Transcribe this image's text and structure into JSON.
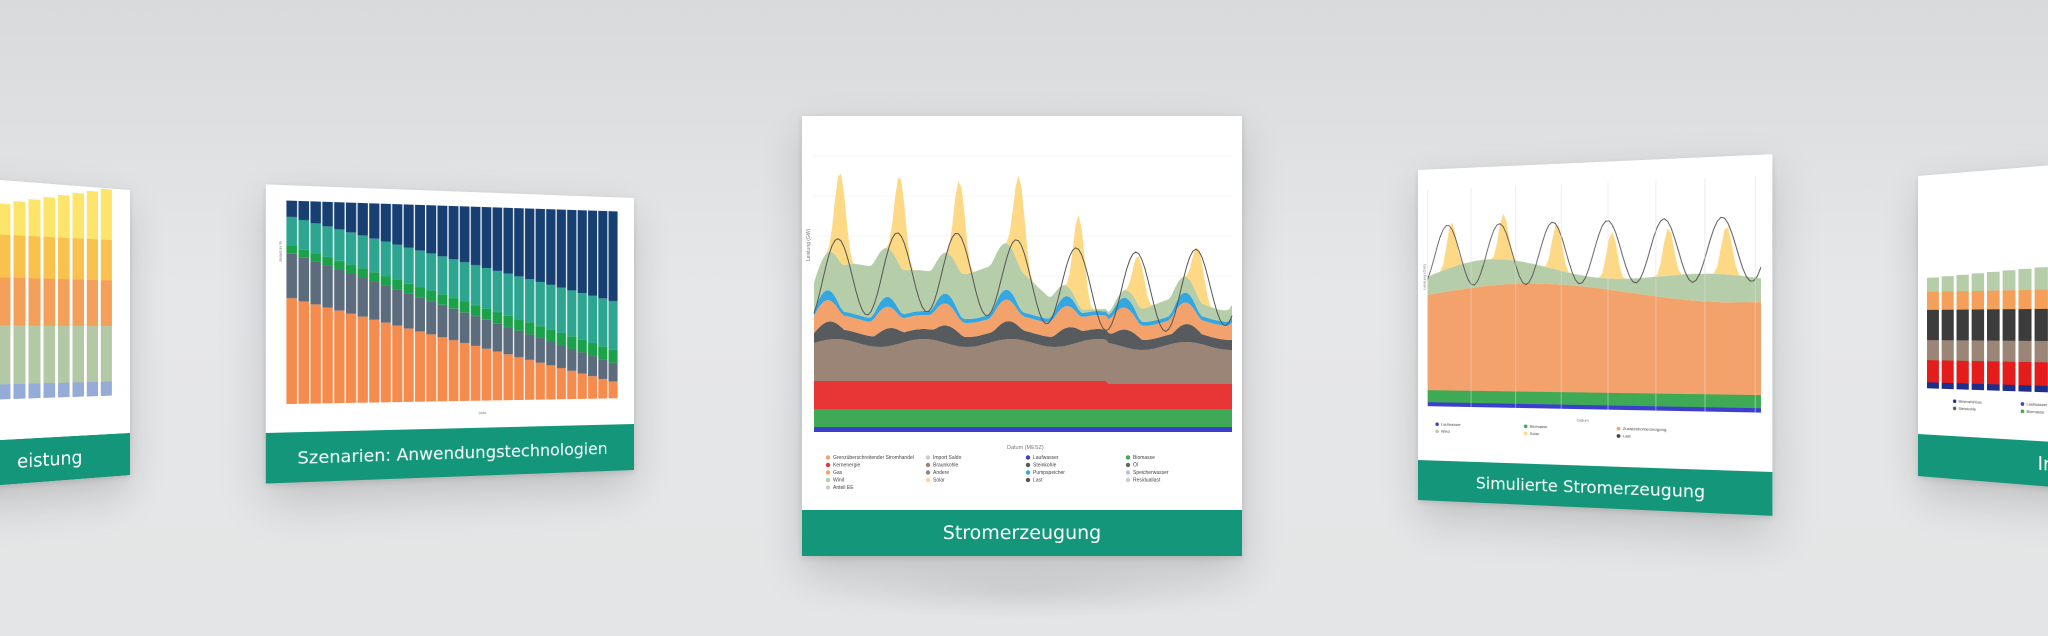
{
  "gallery": {
    "cards": [
      {
        "caption": "eistung",
        "legend": [
          "",
          "",
          ""
        ]
      },
      {
        "caption": "Szenarien: Anwendungstechnologien"
      },
      {
        "caption": "Stromerzeugung",
        "chart": {
          "xlabel": "Datum (MESZ)",
          "ylabel": "Leistung (GW)",
          "legend": [
            "Grenzüberschreitender Stromhandel",
            "Kernenergie",
            "Gas",
            "Wind",
            "Anteil EE",
            "Import Saldo",
            "Braunkohle",
            "Andere",
            "Solar",
            "Laufwasser",
            "Steinkohle",
            "Pumpspeicher",
            "Last",
            "Biomasse",
            "Öl",
            "Speicherwasser",
            "Residuallast"
          ]
        }
      },
      {
        "caption": "Simulierte Stromerzeugung",
        "chart": {
          "xlabel": "Datum",
          "ylabel": "Leistung (GW)",
          "legend": [
            "Laufwasser",
            "Wind",
            "Biomasse",
            "Solar",
            "Zusatzstromerzeugung",
            "Last"
          ]
        }
      },
      {
        "caption": "In",
        "legend": [
          "Mineralöl/Gas",
          "Laufwasser",
          "Steinkohle",
          "Biomasse"
        ]
      }
    ]
  },
  "colors": {
    "teal": "#13967a",
    "solar": "#fed985",
    "wind": "#b6cda9",
    "gas": "#f4a26c",
    "braunkohle": "#9a8576",
    "kernenergie": "#e83535",
    "biomasse": "#3faa56",
    "laufwasser": "#3c3fce",
    "pumpspeicher": "#34a7e0",
    "steinkohle": "#585b5e"
  }
}
